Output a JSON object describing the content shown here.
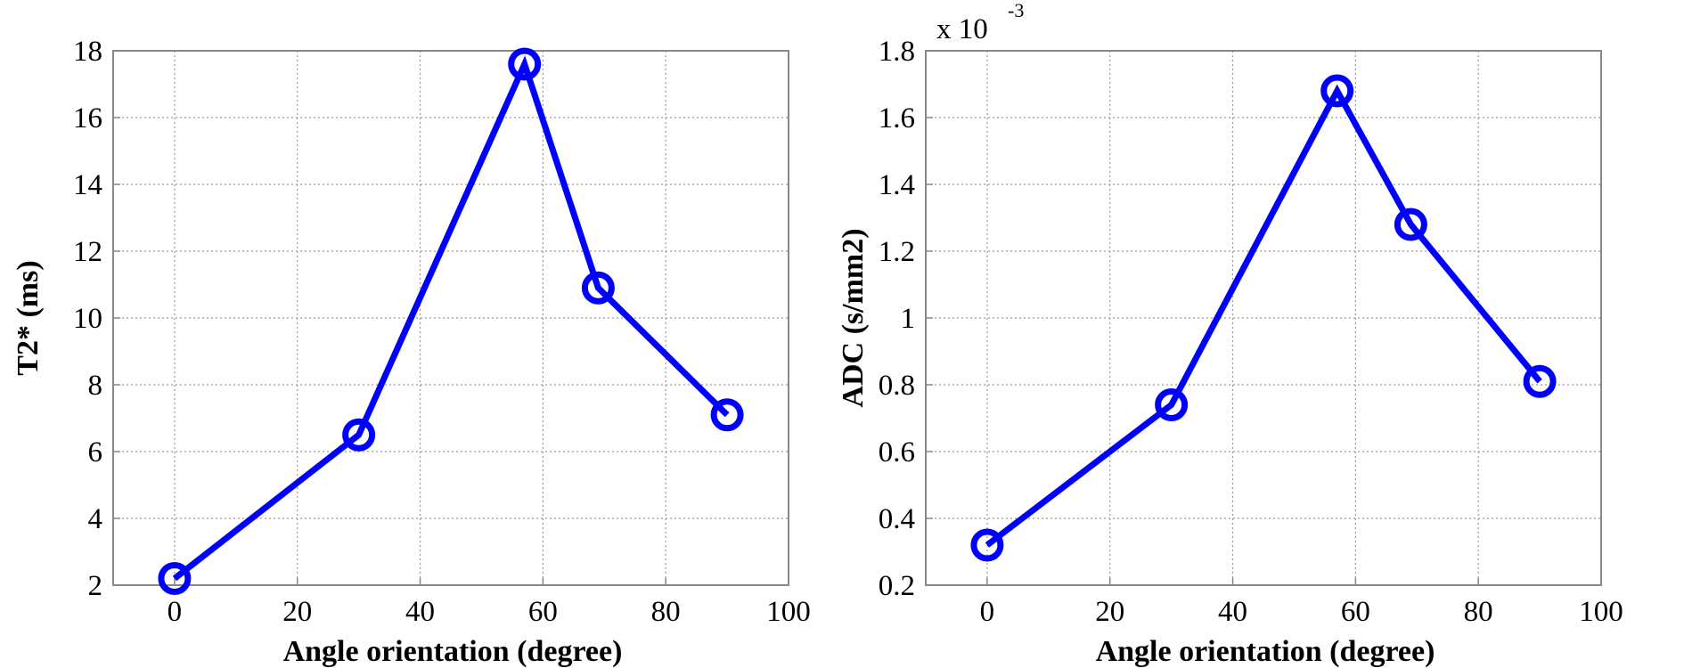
{
  "chart_data": [
    {
      "type": "line",
      "title": "",
      "xlabel": "Angle orientation (degree)",
      "ylabel": "T2* (ms)",
      "xlim": [
        -10,
        100
      ],
      "ylim": [
        2,
        18
      ],
      "xticks": [
        0,
        20,
        40,
        60,
        80,
        100
      ],
      "yticks": [
        2,
        4,
        6,
        8,
        10,
        12,
        14,
        16,
        18
      ],
      "grid": true,
      "exponent_label": null,
      "color": "#0000ff",
      "marker": "circle",
      "x": [
        0,
        30,
        57,
        69,
        90
      ],
      "y": [
        2.2,
        6.5,
        17.6,
        10.9,
        7.1
      ]
    },
    {
      "type": "line",
      "title": "",
      "xlabel": "Angle orientation (degree)",
      "ylabel": "ADC (s/mm2)",
      "xlim": [
        -10,
        100
      ],
      "ylim": [
        0.2,
        1.8
      ],
      "xticks": [
        0,
        20,
        40,
        60,
        80,
        100
      ],
      "yticks": [
        0.2,
        0.4,
        0.6,
        0.8,
        1,
        1.2,
        1.4,
        1.6,
        1.8
      ],
      "grid": true,
      "exponent_label": {
        "base": "x 10",
        "power": "-3"
      },
      "color": "#0000ff",
      "marker": "circle",
      "x": [
        0,
        30,
        57,
        69,
        90
      ],
      "y": [
        0.32,
        0.74,
        1.68,
        1.28,
        0.81
      ]
    }
  ]
}
